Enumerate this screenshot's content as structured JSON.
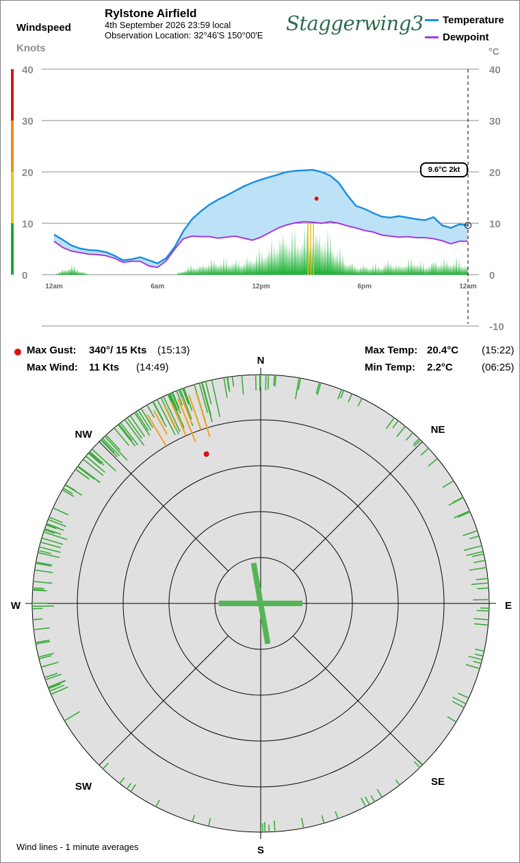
{
  "header": {
    "windspeed_label": "Windspeed",
    "knots_label": "Knots",
    "station": "Rylstone Airfield",
    "datetime": "4th September 2026  23:59 local",
    "location": "Observation Location: 32°46'S 150°00'E",
    "logo": "Staggerwing3"
  },
  "legend": {
    "temperature": "Temperature",
    "dewpoint": "Dewpoint",
    "celsius_unit": "°C"
  },
  "stats": {
    "max_gust_label": "Max Gust:",
    "max_gust_value": "340°/ 15 Kts",
    "max_gust_time": "(15:13)",
    "max_wind_label": "Max Wind:",
    "max_wind_value": "11 Kts",
    "max_wind_time": "(14:49)",
    "max_temp_label": "Max Temp:",
    "max_temp_value": "20.4°C",
    "max_temp_time": "(15:22)",
    "min_temp_label": "Min Temp:",
    "min_temp_value": "2.2°C",
    "min_temp_time": "(06:25)"
  },
  "footer": {
    "note": "Wind lines - 1 minute averages"
  },
  "colors": {
    "temperature": "#1a8fe0",
    "dewpoint": "#a838d8",
    "fill": "#bde1f6",
    "wind": "#18b030",
    "gust": "#e8c020",
    "rose_wind": "#3aaa3a",
    "rose_gust": "#f0a020",
    "marker": "#dd1111",
    "rose_bg": "#e0e0e0"
  },
  "chart_data": [
    {
      "type": "line",
      "x": [
        "00:00",
        "00:30",
        "01:00",
        "01:30",
        "02:00",
        "02:30",
        "03:00",
        "03:30",
        "04:00",
        "04:30",
        "05:00",
        "05:30",
        "06:00",
        "06:30",
        "07:00",
        "07:30",
        "08:00",
        "08:30",
        "09:00",
        "09:30",
        "10:00",
        "10:30",
        "11:00",
        "11:30",
        "12:00",
        "12:30",
        "13:00",
        "13:30",
        "14:00",
        "14:30",
        "15:00",
        "15:30",
        "16:00",
        "16:30",
        "17:00",
        "17:30",
        "18:00",
        "18:30",
        "19:00",
        "19:30",
        "20:00",
        "20:30",
        "21:00",
        "21:30",
        "22:00",
        "22:30",
        "23:00",
        "23:30",
        "23:59"
      ],
      "x_tick_labels": [
        "12am",
        "6am",
        "12pm",
        "6pm",
        "12am"
      ],
      "series": [
        {
          "name": "Temperature",
          "unit": "°C",
          "values": [
            7.8,
            6.8,
            5.7,
            5.1,
            4.8,
            4.7,
            4.4,
            3.7,
            2.8,
            3.0,
            3.4,
            2.8,
            2.2,
            3.2,
            5.4,
            8.5,
            10.8,
            12.3,
            13.6,
            14.6,
            15.4,
            16.3,
            17.2,
            17.9,
            18.5,
            19.0,
            19.5,
            20.0,
            20.2,
            20.3,
            20.4,
            20.0,
            19.3,
            17.9,
            15.5,
            13.4,
            12.8,
            12.0,
            11.3,
            11.1,
            11.4,
            11.1,
            10.8,
            10.6,
            11.2,
            9.6,
            9.1,
            9.8,
            9.6
          ]
        },
        {
          "name": "Dewpoint",
          "unit": "°C",
          "values": [
            6.5,
            5.3,
            4.6,
            4.3,
            4.0,
            3.9,
            3.7,
            3.2,
            2.4,
            2.6,
            2.6,
            1.7,
            1.4,
            2.7,
            5.0,
            7.0,
            7.5,
            7.4,
            7.4,
            7.1,
            7.3,
            7.5,
            7.1,
            6.7,
            7.3,
            8.2,
            9.1,
            9.7,
            10.1,
            10.3,
            10.2,
            10.0,
            10.3,
            10.0,
            9.5,
            9.1,
            8.6,
            8.3,
            7.7,
            7.5,
            7.3,
            7.4,
            7.2,
            7.2,
            7.0,
            6.6,
            6.0,
            6.5,
            6.5
          ]
        },
        {
          "name": "Windspeed",
          "unit": "Knots",
          "values": [
            0,
            1,
            2,
            1,
            0,
            0,
            0,
            0,
            0,
            0,
            0,
            0,
            0,
            0,
            0,
            1,
            2,
            2,
            3,
            3,
            3,
            3,
            3,
            4,
            5,
            6,
            8,
            9,
            8,
            9,
            9,
            9,
            8,
            5,
            3,
            2,
            2,
            2,
            2,
            3,
            2,
            3,
            3,
            2,
            3,
            3,
            3,
            3,
            2
          ]
        },
        {
          "name": "Gust",
          "unit": "Knots",
          "values": [
            0,
            0,
            0,
            0,
            0,
            0,
            0,
            0,
            0,
            0,
            0,
            0,
            0,
            0,
            0,
            0,
            0,
            0,
            0,
            0,
            0,
            0,
            0,
            0,
            0,
            0,
            0,
            0,
            0,
            0,
            10,
            0,
            0,
            0,
            0,
            0,
            0,
            0,
            0,
            0,
            0,
            0,
            0,
            0,
            0,
            0,
            0,
            0,
            0
          ]
        }
      ],
      "windspeed_axis": {
        "label": "Knots",
        "range": [
          0,
          40
        ],
        "ticks": [
          0,
          10,
          20,
          30,
          40
        ]
      },
      "temperature_axis": {
        "label": "°C",
        "range": [
          -10,
          40
        ],
        "ticks": [
          -10,
          0,
          10,
          20,
          30,
          40
        ]
      },
      "grid": true,
      "legend_position": "top-right",
      "max_gust_marker": {
        "time": "15:13",
        "temperature": 14.8
      },
      "current_callout": "9.6°C  2kt"
    },
    {
      "type": "polar",
      "directions": [
        "N",
        "NE",
        "E",
        "SE",
        "S",
        "SW",
        "W",
        "NW"
      ],
      "rings": 4,
      "max_gust": {
        "direction_deg": 340,
        "speed_kts": 15
      },
      "sector_counts_1min": [
        {
          "direction": "N",
          "count": 55
        },
        {
          "direction": "NNE",
          "count": 25
        },
        {
          "direction": "NE",
          "count": 30
        },
        {
          "direction": "ENE",
          "count": 45
        },
        {
          "direction": "E",
          "count": 40
        },
        {
          "direction": "ESE",
          "count": 35
        },
        {
          "direction": "SE",
          "count": 10
        },
        {
          "direction": "SSE",
          "count": 25
        },
        {
          "direction": "S",
          "count": 20
        },
        {
          "direction": "SSW",
          "count": 10
        },
        {
          "direction": "SW",
          "count": 15
        },
        {
          "direction": "WSW",
          "count": 45
        },
        {
          "direction": "W",
          "count": 55
        },
        {
          "direction": "WNW",
          "count": 70
        },
        {
          "direction": "NW",
          "count": 95
        },
        {
          "direction": "NNW",
          "count": 120
        }
      ],
      "center_cross": {
        "main_axis_direction_deg": 170
      }
    }
  ]
}
